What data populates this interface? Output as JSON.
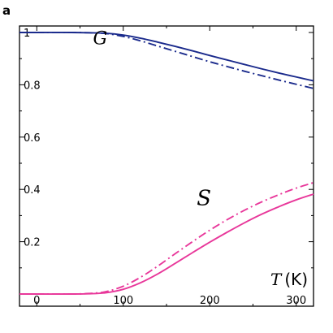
{
  "panel_label": "a",
  "chart_data": {
    "type": "line",
    "title": "",
    "xlabel": "T",
    "xlabel_unit": "(K)",
    "ylabel": "",
    "xlim": [
      -20,
      320
    ],
    "ylim": [
      0,
      1.0
    ],
    "x_ticks": [
      0,
      100,
      200,
      300
    ],
    "x_tick_labels": [
      "0",
      "100",
      "200",
      "300"
    ],
    "y_ticks": [
      0.2,
      0.4,
      0.6,
      0.8,
      1.0
    ],
    "y_tick_labels": [
      "0.2",
      "0.4",
      "0.6",
      "0.8",
      "1"
    ],
    "grid": false,
    "series_labels": [
      {
        "text": "G",
        "x": 65,
        "y": 0.955,
        "size": 22
      },
      {
        "text": "S",
        "x": 185,
        "y": 0.34,
        "size": 26
      }
    ],
    "series": [
      {
        "color": "#1a2a8c",
        "dash": "solid",
        "x": [
          -20,
          0,
          40,
          60,
          80,
          100,
          120,
          140,
          160,
          180,
          200,
          220,
          240,
          260,
          280,
          300,
          320
        ],
        "y": [
          1.0,
          1.0,
          1.0,
          0.999,
          0.997,
          0.99,
          0.978,
          0.963,
          0.947,
          0.93,
          0.912,
          0.895,
          0.878,
          0.861,
          0.845,
          0.83,
          0.815
        ]
      },
      {
        "color": "#1a2a8c",
        "dash": "dashdot",
        "x": [
          -20,
          0,
          40,
          60,
          80,
          100,
          120,
          140,
          160,
          180,
          200,
          220,
          240,
          260,
          280,
          300,
          320
        ],
        "y": [
          1.0,
          1.0,
          1.0,
          0.999,
          0.996,
          0.985,
          0.968,
          0.948,
          0.928,
          0.908,
          0.888,
          0.87,
          0.852,
          0.835,
          0.818,
          0.802,
          0.786
        ]
      },
      {
        "color": "#e8379a",
        "dash": "solid",
        "x": [
          -20,
          0,
          40,
          60,
          80,
          100,
          120,
          140,
          160,
          180,
          200,
          220,
          240,
          260,
          280,
          300,
          320
        ],
        "y": [
          0.0,
          0.0,
          0.0,
          0.001,
          0.005,
          0.018,
          0.043,
          0.077,
          0.117,
          0.158,
          0.198,
          0.236,
          0.272,
          0.305,
          0.334,
          0.36,
          0.382
        ]
      },
      {
        "color": "#e8379a",
        "dash": "dashdot",
        "x": [
          -20,
          0,
          40,
          60,
          80,
          100,
          120,
          140,
          160,
          180,
          200,
          220,
          240,
          260,
          280,
          300,
          320
        ],
        "y": [
          0.0,
          0.0,
          0.0,
          0.002,
          0.009,
          0.03,
          0.064,
          0.107,
          0.154,
          0.2,
          0.244,
          0.284,
          0.32,
          0.352,
          0.38,
          0.405,
          0.426
        ]
      }
    ]
  }
}
